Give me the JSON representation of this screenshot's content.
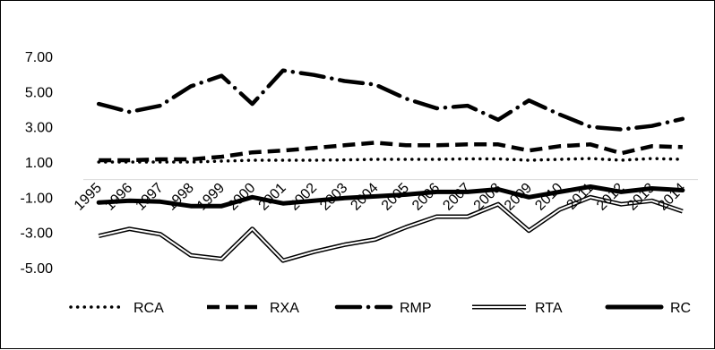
{
  "chart_data": {
    "type": "line",
    "title": "",
    "xlabel": "",
    "ylabel": "",
    "ylim": [
      -5,
      7
    ],
    "yticks": [
      "7.00",
      "5.00",
      "3.00",
      "1.00",
      "-1.00",
      "-3.00",
      "-5.00"
    ],
    "ytick_values": [
      7,
      5,
      3,
      1,
      -1,
      -3,
      -5
    ],
    "grid": false,
    "legend_position": "bottom",
    "categories": [
      "1995",
      "1996",
      "1997",
      "1998",
      "1999",
      "2000",
      "2001",
      "2002",
      "2003",
      "2004",
      "2005",
      "2006",
      "2007",
      "2008",
      "2009",
      "2010",
      "2011",
      "2012",
      "2013",
      "2014"
    ],
    "series": [
      {
        "name": "RCA",
        "style": "dotted",
        "color": "#000000",
        "values": [
          1.0,
          1.0,
          1.0,
          1.0,
          1.05,
          1.1,
          1.1,
          1.1,
          1.12,
          1.15,
          1.15,
          1.15,
          1.18,
          1.18,
          1.1,
          1.15,
          1.2,
          1.1,
          1.2,
          1.15
        ]
      },
      {
        "name": "RXA",
        "style": "dashed",
        "color": "#000000",
        "values": [
          1.1,
          1.1,
          1.15,
          1.15,
          1.3,
          1.55,
          1.65,
          1.8,
          1.95,
          2.1,
          1.95,
          1.95,
          2.0,
          2.0,
          1.65,
          1.9,
          2.0,
          1.5,
          1.9,
          1.85
        ]
      },
      {
        "name": "RMP",
        "style": "dash-dot",
        "color": "#000000",
        "values": [
          4.3,
          3.85,
          4.2,
          5.3,
          5.9,
          4.3,
          6.2,
          5.95,
          5.6,
          5.4,
          4.6,
          4.05,
          4.2,
          3.4,
          4.5,
          3.7,
          3.0,
          2.85,
          3.05,
          3.45
        ]
      },
      {
        "name": "RTA",
        "style": "double",
        "color": "#000000",
        "values": [
          -3.2,
          -2.8,
          -3.1,
          -4.3,
          -4.5,
          -2.8,
          -4.6,
          -4.1,
          -3.7,
          -3.4,
          -2.7,
          -2.1,
          -2.1,
          -1.4,
          -2.9,
          -1.7,
          -1.0,
          -1.4,
          -1.2,
          -1.8
        ]
      },
      {
        "name": "RC",
        "style": "thick",
        "color": "#000000",
        "values": [
          -1.3,
          -1.2,
          -1.25,
          -1.5,
          -1.5,
          -1.0,
          -1.35,
          -1.2,
          -1.05,
          -0.95,
          -0.85,
          -0.7,
          -0.7,
          -0.55,
          -1.0,
          -0.7,
          -0.4,
          -0.7,
          -0.5,
          -0.6
        ]
      }
    ]
  }
}
